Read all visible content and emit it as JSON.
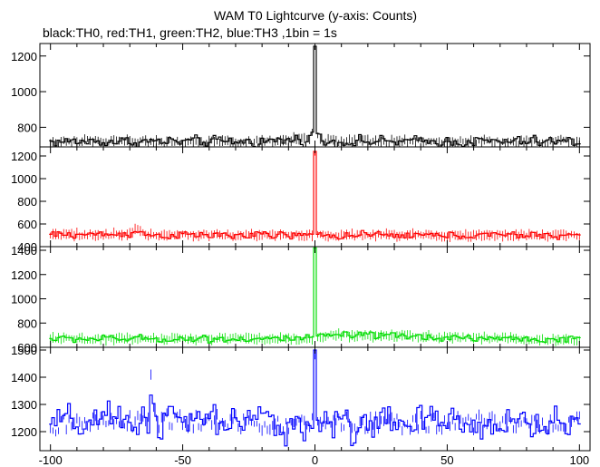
{
  "chart_data": {
    "type": "line",
    "title": "WAM T0 Lightcurve (y-axis: Counts)",
    "subtitle": "black:TH0, red:TH1, green:TH2, blue:TH3 ,1bin = 1s",
    "xlabel": "",
    "ylabel": "",
    "xlim": [
      -104,
      104
    ],
    "x_ticks": [
      -100,
      -50,
      0,
      50,
      100
    ],
    "grid": false,
    "panels": [
      {
        "name": "TH0",
        "color": "#000000",
        "ylim": [
          690,
          1270
        ],
        "y_ticks": [
          800,
          1000,
          1200
        ],
        "baseline": 720,
        "noise": 18,
        "peak_x": 0,
        "peak": 1255,
        "segments": [
          [
            -100,
            720
          ],
          [
            -20,
            720
          ],
          [
            -2,
            735
          ],
          [
            -1,
            770
          ],
          [
            0,
            1255
          ],
          [
            1,
            760
          ],
          [
            3,
            720
          ],
          [
            100,
            720
          ]
        ]
      },
      {
        "name": "TH1",
        "color": "#ff0000",
        "ylim": [
          400,
          1280
        ],
        "y_ticks": [
          400,
          600,
          800,
          1000,
          1200
        ],
        "baseline": 495,
        "noise": 20,
        "peak_x": 0,
        "peak": 1240,
        "segments": [
          [
            -100,
            505
          ],
          [
            -70,
            510
          ],
          [
            -68,
            560
          ],
          [
            -64,
            500
          ],
          [
            -1,
            500
          ],
          [
            0,
            1240
          ],
          [
            1,
            500
          ],
          [
            100,
            500
          ]
        ]
      },
      {
        "name": "TH2",
        "color": "#00dd00",
        "ylim": [
          600,
          1430
        ],
        "y_ticks": [
          600,
          800,
          1000,
          1200,
          1400
        ],
        "baseline": 670,
        "noise": 18,
        "peak_x": 0,
        "peak": 1420,
        "segments": [
          [
            -100,
            670
          ],
          [
            -1,
            670
          ],
          [
            0,
            1420
          ],
          [
            1,
            690
          ],
          [
            8,
            700
          ],
          [
            100,
            660
          ]
        ]
      },
      {
        "name": "TH3",
        "color": "#0000ff",
        "ylim": [
          1130,
          1510
        ],
        "y_ticks": [
          1200,
          1300,
          1400,
          1500
        ],
        "baseline": 1230,
        "noise": 40,
        "peak_x": 0,
        "peak": 1500,
        "segments": [
          [
            -100,
            1225
          ],
          [
            -63,
            1240
          ],
          [
            -62,
            1390
          ],
          [
            -60,
            1240
          ],
          [
            -1,
            1230
          ],
          [
            0,
            1500
          ],
          [
            1,
            1230
          ],
          [
            100,
            1230
          ]
        ]
      }
    ]
  }
}
